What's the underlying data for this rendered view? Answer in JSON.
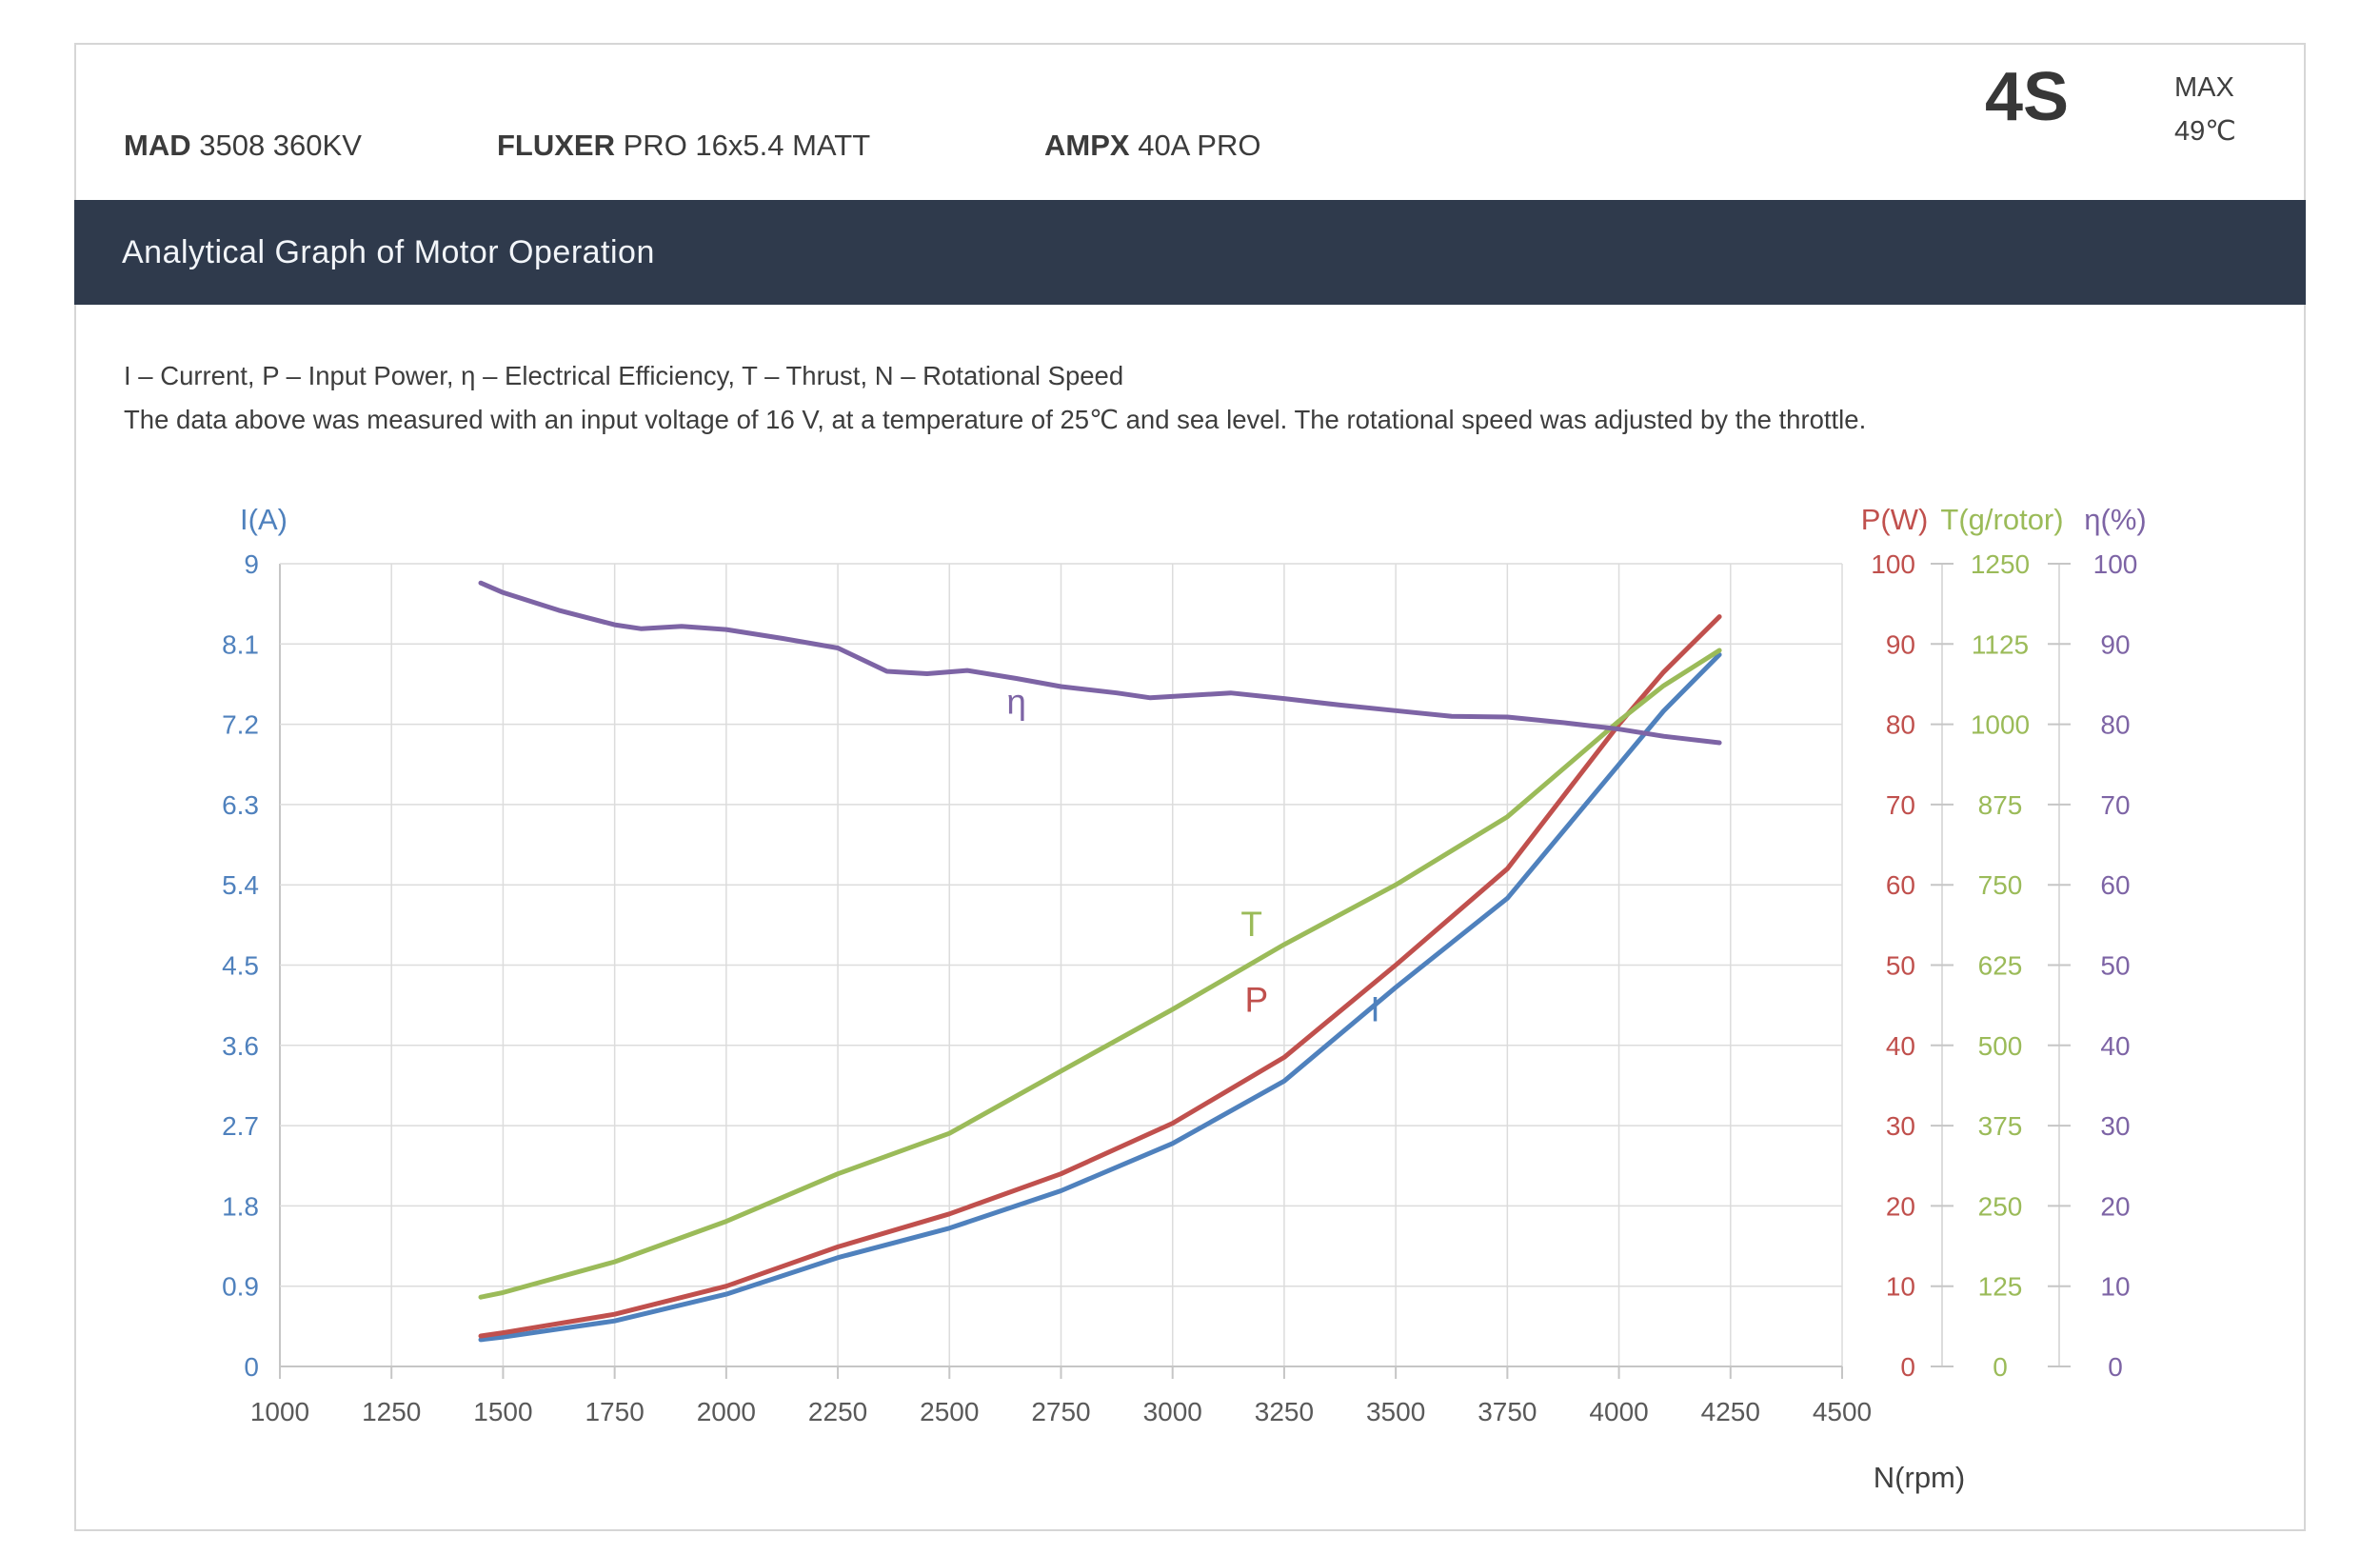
{
  "header": {
    "products": [
      {
        "brand": "MAD",
        "model": "3508 360KV"
      },
      {
        "brand": "FLUXER",
        "model": "PRO 16x5.4 MATT"
      },
      {
        "brand": "AMPX",
        "model": "40A PRO"
      }
    ],
    "battery": "4S",
    "max_label": "MAX",
    "max_temp": "49℃"
  },
  "banner": {
    "title": "Analytical Graph of Motor Operation"
  },
  "description": {
    "line1": "I – Current, P – Input Power, η – Electrical Efficiency, T – Thrust,   N – Rotational Speed",
    "line2": "The data above was measured with an input voltage of 16 V, at a temperature of 25℃ and sea level. The rotational speed was adjusted by the throttle."
  },
  "colors": {
    "current_blue": "#4f81bd",
    "power_red": "#c0504d",
    "thrust_green": "#9bbb59",
    "efficiency_purple": "#7d64a5",
    "banner_bg": "#2f3a4c",
    "grid": "#dcdcdc",
    "axis": "#c6c6c6",
    "tick_text": "#595959"
  },
  "chart_data": {
    "type": "line",
    "title": "Analytical Graph of Motor Operation",
    "grid": true,
    "x_axis": {
      "label": "N(rpm)",
      "min": 1000,
      "max": 4500,
      "tick_step": 250
    },
    "y_axes": [
      {
        "id": "I",
        "title": "I(A)",
        "min": 0,
        "max": 9,
        "tick_step": 0.9,
        "color": "#4f81bd",
        "side": "left"
      },
      {
        "id": "P",
        "title": "P(W)",
        "min": 0,
        "max": 100,
        "tick_step": 10,
        "color": "#c0504d",
        "side": "right"
      },
      {
        "id": "T",
        "title": "T(g/rotor)",
        "min": 0,
        "max": 1250,
        "tick_step": 125,
        "color": "#9bbb59",
        "side": "right"
      },
      {
        "id": "eta",
        "title": "η(%)",
        "min": 0,
        "max": 100,
        "tick_step": 10,
        "color": "#7d64a5",
        "side": "right"
      }
    ],
    "series": [
      {
        "name": "Current",
        "label": "I",
        "axis": "I",
        "color": "#4f81bd",
        "points": [
          [
            1450,
            0.3
          ],
          [
            1500,
            0.33
          ],
          [
            1750,
            0.51
          ],
          [
            2000,
            0.81
          ],
          [
            2250,
            1.22
          ],
          [
            2500,
            1.55
          ],
          [
            2750,
            1.97
          ],
          [
            3000,
            2.5
          ],
          [
            3250,
            3.2
          ],
          [
            3500,
            4.25
          ],
          [
            3750,
            5.25
          ],
          [
            4000,
            6.75
          ],
          [
            4100,
            7.35
          ],
          [
            4225,
            7.98
          ]
        ]
      },
      {
        "name": "Input Power",
        "label": "P",
        "axis": "P",
        "color": "#c0504d",
        "points": [
          [
            1450,
            3.8
          ],
          [
            1500,
            4.2
          ],
          [
            1750,
            6.5
          ],
          [
            2000,
            10.0
          ],
          [
            2250,
            14.9
          ],
          [
            2500,
            19.0
          ],
          [
            2750,
            24.0
          ],
          [
            3000,
            30.3
          ],
          [
            3250,
            38.5
          ],
          [
            3500,
            50.0
          ],
          [
            3750,
            62.0
          ],
          [
            4000,
            80.0
          ],
          [
            4100,
            86.5
          ],
          [
            4225,
            93.4
          ]
        ]
      },
      {
        "name": "Thrust",
        "label": "T",
        "axis": "T",
        "color": "#9bbb59",
        "points": [
          [
            1450,
            108
          ],
          [
            1500,
            115
          ],
          [
            1750,
            163
          ],
          [
            2000,
            226
          ],
          [
            2250,
            300
          ],
          [
            2500,
            363
          ],
          [
            2750,
            460
          ],
          [
            3000,
            556
          ],
          [
            3250,
            657
          ],
          [
            3500,
            750
          ],
          [
            3750,
            856
          ],
          [
            4000,
            1005
          ],
          [
            4100,
            1060
          ],
          [
            4225,
            1115
          ]
        ]
      },
      {
        "name": "Electrical Efficiency",
        "label": "η",
        "axis": "eta",
        "color": "#7d64a5",
        "points": [
          [
            1450,
            97.6
          ],
          [
            1500,
            96.4
          ],
          [
            1625,
            94.2
          ],
          [
            1750,
            92.4
          ],
          [
            1810,
            91.9
          ],
          [
            1900,
            92.2
          ],
          [
            2000,
            91.8
          ],
          [
            2125,
            90.7
          ],
          [
            2250,
            89.5
          ],
          [
            2360,
            86.6
          ],
          [
            2450,
            86.3
          ],
          [
            2540,
            86.7
          ],
          [
            2650,
            85.7
          ],
          [
            2750,
            84.7
          ],
          [
            2875,
            83.9
          ],
          [
            2950,
            83.3
          ],
          [
            3130,
            83.9
          ],
          [
            3250,
            83.2
          ],
          [
            3375,
            82.4
          ],
          [
            3500,
            81.7
          ],
          [
            3625,
            81.0
          ],
          [
            3750,
            80.9
          ],
          [
            3875,
            80.2
          ],
          [
            4000,
            79.4
          ],
          [
            4100,
            78.5
          ],
          [
            4225,
            77.7
          ]
        ]
      }
    ],
    "series_labels": [
      {
        "text": "η",
        "axis": "eta",
        "n": 2650,
        "v": 81.3,
        "color": "#7d64a5"
      },
      {
        "text": "T",
        "axis": "T",
        "n": 3177,
        "v": 670,
        "color": "#9bbb59"
      },
      {
        "text": "P",
        "axis": "P",
        "n": 3188,
        "v": 44.2,
        "color": "#c0504d"
      },
      {
        "text": "I",
        "axis": "I",
        "n": 3454,
        "v": 3.87,
        "color": "#4f81bd"
      }
    ]
  }
}
